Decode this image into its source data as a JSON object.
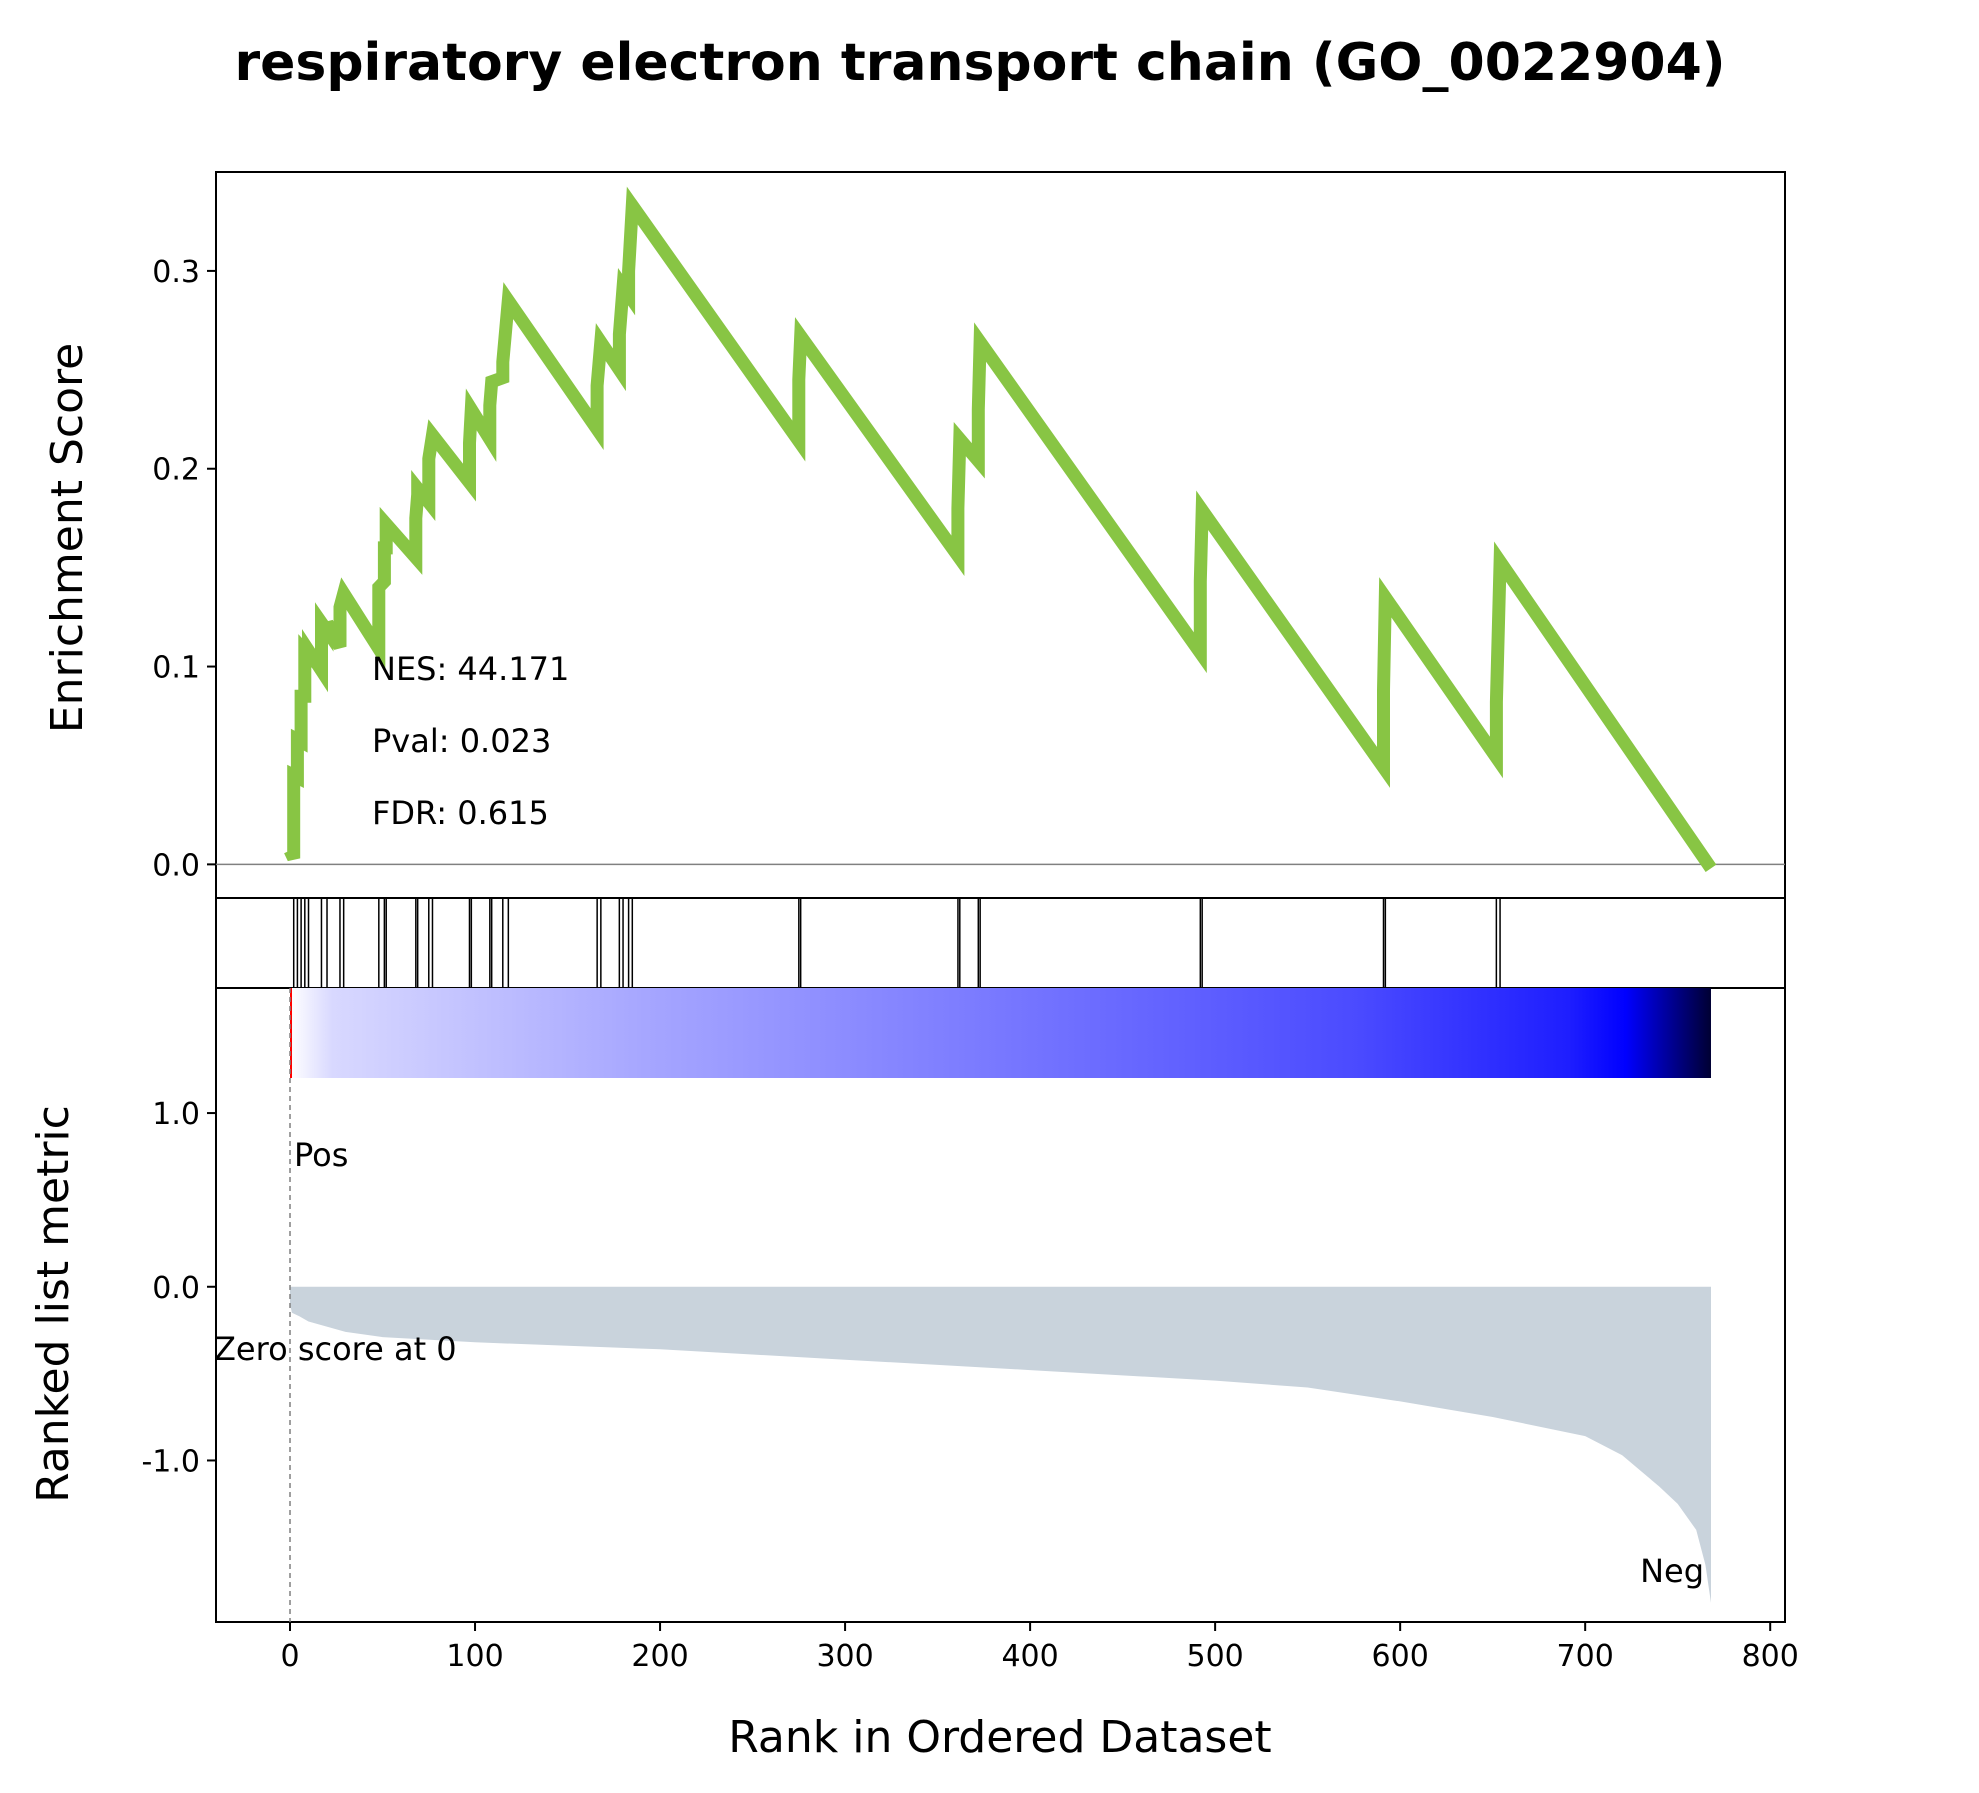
{
  "chart_data": {
    "type": "line",
    "title": "respiratory electron transport chain (GO_0022904)",
    "xlabel": "Rank in Ordered Dataset",
    "xlim": [
      -40,
      808
    ],
    "x_ticks": [
      "0",
      "100",
      "200",
      "300",
      "400",
      "500",
      "600",
      "700",
      "800"
    ],
    "x_tick_values": [
      0,
      100,
      200,
      300,
      400,
      500,
      600,
      700,
      800
    ],
    "enrichment_panel": {
      "ylabel": "Enrichment Score",
      "ylim": [
        -0.017,
        0.35
      ],
      "y_ticks": [
        "0.0",
        "0.1",
        "0.2",
        "0.3"
      ],
      "y_tick_values": [
        0.0,
        0.1,
        0.2,
        0.3
      ],
      "line_color": "#88c544",
      "x": [
        0,
        2,
        2,
        4,
        4,
        6,
        6,
        8,
        8,
        10,
        10,
        17,
        17,
        20,
        20,
        27,
        27,
        29,
        29,
        48,
        48,
        51,
        51,
        52,
        52,
        68,
        68,
        69,
        69,
        75,
        75,
        77,
        77,
        97,
        97,
        98,
        98,
        108,
        108,
        109,
        109,
        115,
        115,
        118,
        118,
        166,
        166,
        168,
        168,
        178,
        178,
        180,
        180,
        183,
        183,
        185,
        185,
        275,
        275,
        276,
        276,
        361,
        361,
        362,
        362,
        372,
        372,
        373,
        373,
        492,
        492,
        493,
        493,
        591,
        591,
        592,
        592,
        652,
        652,
        654,
        654,
        768
      ],
      "es": [
        0.007,
        0.003,
        0.045,
        0.044,
        0.063,
        0.062,
        0.085,
        0.085,
        0.108,
        0.106,
        0.108,
        0.098,
        0.122,
        0.118,
        0.122,
        0.11,
        0.13,
        0.137,
        0.137,
        0.109,
        0.14,
        0.143,
        0.16,
        0.16,
        0.172,
        0.155,
        0.175,
        0.187,
        0.19,
        0.183,
        0.205,
        0.217,
        0.217,
        0.193,
        0.213,
        0.23,
        0.23,
        0.215,
        0.232,
        0.244,
        0.244,
        0.246,
        0.254,
        0.285,
        0.285,
        0.22,
        0.242,
        0.264,
        0.264,
        0.25,
        0.268,
        0.292,
        0.292,
        0.288,
        0.3,
        0.333,
        0.333,
        0.214,
        0.245,
        0.267,
        0.267,
        0.156,
        0.18,
        0.215,
        0.215,
        0.204,
        0.23,
        0.264,
        0.264,
        0.107,
        0.143,
        0.179,
        0.179,
        0.049,
        0.088,
        0.135,
        0.135,
        0.054,
        0.082,
        0.153,
        0.153,
        -0.002
      ],
      "stats": [
        "NES: 44.171",
        "Pval: 0.023",
        "FDR: 0.615"
      ]
    },
    "hits_panel": {
      "hit_ranks": [
        2,
        4,
        6,
        8,
        10,
        17,
        20,
        27,
        29,
        48,
        51,
        52,
        68,
        69,
        75,
        77,
        97,
        98,
        108,
        109,
        115,
        118,
        166,
        168,
        178,
        180,
        183,
        185,
        275,
        276,
        361,
        362,
        372,
        373,
        492,
        493,
        591,
        592,
        652,
        654
      ]
    },
    "ranked_panel": {
      "ylabel": "Ranked list metric",
      "ylim": [
        -1.93,
        1.72
      ],
      "y_ticks": [
        "1.0",
        "0.0",
        "-1.0"
      ],
      "y_tick_values": [
        1.0,
        0.0,
        -1.0
      ],
      "fill_color": "#c9d3dc",
      "metric_x": [
        0,
        1,
        5,
        10,
        30,
        50,
        100,
        150,
        200,
        300,
        400,
        500,
        550,
        600,
        650,
        700,
        720,
        730,
        740,
        750,
        760,
        765,
        768
      ],
      "metric_y": [
        -0.1,
        -0.15,
        -0.17,
        -0.2,
        -0.26,
        -0.29,
        -0.32,
        -0.34,
        -0.36,
        -0.42,
        -0.48,
        -0.54,
        -0.58,
        -0.66,
        -0.75,
        -0.86,
        -0.97,
        -1.06,
        -1.15,
        -1.25,
        -1.4,
        -1.6,
        -1.82
      ],
      "zero_label": "Zero score at 0",
      "pos_label": "Pos",
      "neg_label": "Neg",
      "pos_color": "#ff0000",
      "neg_color": "#0000ff"
    }
  }
}
